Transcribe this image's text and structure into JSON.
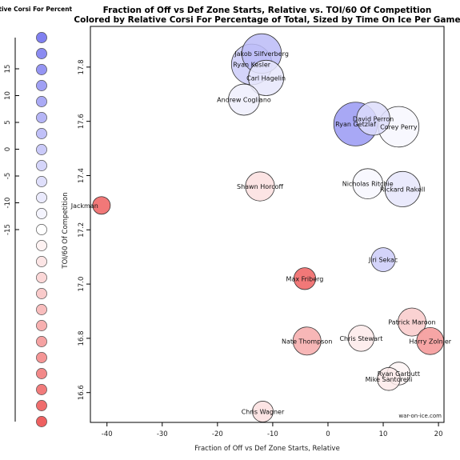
{
  "chart_data": {
    "type": "scatter",
    "title": "Fraction of Off vs Def Zone Starts, Relative vs. TOI/60 Of Competition",
    "subtitle": "Colored by Relative Corsi For Percentage of Total, Sized by Time On Ice Per Game",
    "xlabel": "Fraction of Off vs Def Zone Starts, Relative",
    "ylabel": "TOI/60 Of Competition",
    "xlim": [
      -43,
      21
    ],
    "ylim": [
      16.49,
      17.95
    ],
    "xticks": [
      "-40",
      "-30",
      "-20",
      "-10",
      "0",
      "10",
      "20"
    ],
    "yticks": [
      "16.6",
      "16.8",
      "17.0",
      "17.2",
      "17.4",
      "17.6",
      "17.8"
    ],
    "credit": "war-on-ice.com",
    "legend": {
      "title": "Relative Corsi For Percent",
      "ticks": [
        "15",
        "10",
        "5",
        "0",
        "-5",
        "-10",
        "-15"
      ]
    },
    "points": [
      {
        "name": "Jakob Silfverberg",
        "x": -12.0,
        "y": 17.85,
        "toi": 19.0,
        "rcf": 8
      },
      {
        "name": "Ryan Kesler",
        "x": -13.8,
        "y": 17.81,
        "toi": 19.5,
        "rcf": 6
      },
      {
        "name": "Carl Hagelin",
        "x": -11.2,
        "y": 17.76,
        "toi": 17.0,
        "rcf": 3
      },
      {
        "name": "Andrew Cogliano",
        "x": -15.2,
        "y": 17.68,
        "toi": 15.0,
        "rcf": 2
      },
      {
        "name": "Ryan Getzlaf",
        "x": 5.0,
        "y": 17.59,
        "toi": 21.0,
        "rcf": 12
      },
      {
        "name": "David Perron",
        "x": 8.2,
        "y": 17.61,
        "toi": 16.0,
        "rcf": 4
      },
      {
        "name": "Corey Perry",
        "x": 12.8,
        "y": 17.58,
        "toi": 19.5,
        "rcf": 1
      },
      {
        "name": "Shawn Horcoff",
        "x": -12.3,
        "y": 17.36,
        "toi": 14.0,
        "rcf": -3
      },
      {
        "name": "Nicholas Ritchie",
        "x": 7.2,
        "y": 17.37,
        "toi": 14.5,
        "rcf": 1
      },
      {
        "name": "Rickard Rakell",
        "x": 13.5,
        "y": 17.35,
        "toi": 17.0,
        "rcf": 3
      },
      {
        "name": "Jackman",
        "x": -41.0,
        "y": 17.29,
        "toi": 8.5,
        "rcf": -15
      },
      {
        "name": "Jiri Sekac",
        "x": 10.0,
        "y": 17.09,
        "toi": 11.5,
        "rcf": 6
      },
      {
        "name": "Max Friberg",
        "x": -4.2,
        "y": 17.02,
        "toi": 10.5,
        "rcf": -15
      },
      {
        "name": "Patrick Maroon",
        "x": 15.2,
        "y": 16.86,
        "toi": 13.5,
        "rcf": -5
      },
      {
        "name": "Chris Stewart",
        "x": 6.0,
        "y": 16.8,
        "toi": 12.5,
        "rcf": -2
      },
      {
        "name": "Nate Thompson",
        "x": -3.8,
        "y": 16.79,
        "toi": 13.5,
        "rcf": -8
      },
      {
        "name": "Harry Zolnier",
        "x": 18.5,
        "y": 16.79,
        "toi": 13.0,
        "rcf": -10
      },
      {
        "name": "Ryan Garbutt",
        "x": 12.8,
        "y": 16.67,
        "toi": 11.0,
        "rcf": -1
      },
      {
        "name": "Mike Santorelli",
        "x": 11.0,
        "y": 16.65,
        "toi": 11.0,
        "rcf": -2
      },
      {
        "name": "Chris Wagner",
        "x": -11.8,
        "y": 16.53,
        "toi": 10.0,
        "rcf": -3
      }
    ],
    "label_anchor": {
      "Jakob Silfverberg": "middle",
      "Ryan Kesler": "middle",
      "Carl Hagelin": "middle",
      "Andrew Cogliano": "middle",
      "Ryan Getzlaf": "middle",
      "David Perron": "middle",
      "Corey Perry": "middle",
      "Shawn Horcoff": "middle",
      "Nicholas Ritchie": "middle",
      "Rickard Rakell": "middle",
      "Jackman": "end",
      "Jiri Sekac": "middle",
      "Max Friberg": "middle",
      "Patrick Maroon": "middle",
      "Chris Stewart": "middle",
      "Nate Thompson": "middle",
      "Harry Zolnier": "middle",
      "Ryan Garbutt": "middle",
      "Mike Santorelli": "middle",
      "Chris Wagner": "middle"
    }
  }
}
